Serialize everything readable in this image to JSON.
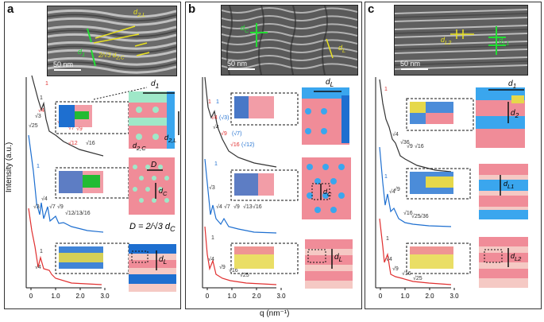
{
  "panels": [
    {
      "letter": "a",
      "scale": "50 nm"
    },
    {
      "letter": "b",
      "scale": "50 nm"
    },
    {
      "letter": "c",
      "scale": "50 nm"
    }
  ],
  "axes": {
    "ylabel": "Intensity (a.u.)",
    "xlabel": "q (nm⁻¹)",
    "xticks": [
      "0",
      "1.0",
      "2.0",
      "3.0"
    ]
  },
  "tem_labels": {
    "a": {
      "d1": "d",
      "d1_sub": "1",
      "d2l": "d",
      "d2l_sub": "2,L",
      "d2c_frac": "2",
      "d2c_frac_den": "√3",
      "d2c": "d",
      "d2c_sub": "2,C"
    },
    "b": {
      "dc": "d",
      "dc_sub": "C",
      "dl": "d",
      "dl_sub": "L"
    },
    "c": {
      "dl2": "d",
      "dl2_sub": "L2",
      "dl1": "d",
      "dl1_sub": "L1"
    }
  },
  "schematic_labels": {
    "a_top": {
      "d1": "d",
      "d1_sub": "1",
      "d2c": "d",
      "d2c_sub": "2,C",
      "d2l": "d",
      "d2l_sub": "2,L"
    },
    "a_mid": {
      "D": "D",
      "dc": "d",
      "dc_sub": "C"
    },
    "a_eq": {
      "lhs": "D =",
      "num": "2",
      "den": "√3",
      "d": "d",
      "sub": "C"
    },
    "a_bot": {
      "d": "d",
      "sub": "L"
    },
    "b_top": {
      "d": "d",
      "sub": "L"
    },
    "b_mid": {
      "d": "d",
      "sub": "C"
    },
    "b_bot": {
      "d": "d",
      "sub": "L"
    },
    "c_top": {
      "d1": "d",
      "d1_sub": "1",
      "d2": "d",
      "d2_sub": "2"
    },
    "c_mid": {
      "d": "d",
      "sub": "L1"
    },
    "c_bot": {
      "d": "d",
      "sub": "L2"
    }
  },
  "peak_labels": {
    "a_top": [
      "1",
      "1",
      "√3",
      "√4",
      "√25",
      "√4",
      "√7",
      "√9",
      "√16",
      "√12"
    ],
    "a_mid": [
      "1",
      "√3",
      "√4",
      "√7",
      "√9",
      "√12",
      "√13",
      "√16"
    ],
    "a_bot": [
      "1",
      "√4"
    ],
    "b_top": [
      "1",
      "1",
      "√4",
      "(√3)",
      "√4",
      "√9",
      "(√7)",
      "√16",
      "(√12)"
    ],
    "b_mid": [
      "1",
      "√3",
      "√4",
      "√7",
      "√9",
      "√13",
      "√16"
    ],
    "b_bot": [
      "1",
      "√4",
      "√9",
      "√16",
      "√25"
    ],
    "c_top": [
      "1",
      "√4",
      "√36",
      "√9",
      "√16"
    ],
    "c_mid": [
      "1",
      "√4",
      "√9",
      "√16",
      "√25",
      "√36"
    ],
    "c_bot": [
      "1",
      "√4",
      "√9",
      "√16",
      "√25"
    ]
  },
  "colors": {
    "green": "#22bb33",
    "blue": "#1e6fd0",
    "red": "#e03030",
    "pink": "#f08c98",
    "lightblue": "#3aa6ee",
    "yellow": "#e6d84a",
    "teal": "#9fe8c8"
  }
}
